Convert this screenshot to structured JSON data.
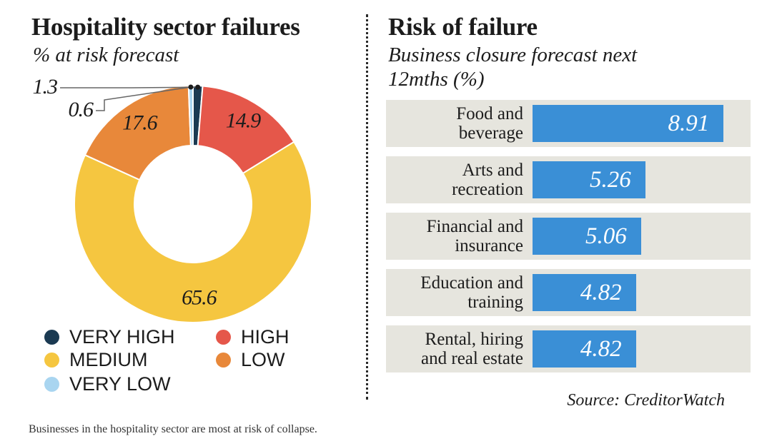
{
  "caption": "Businesses in the hospitality sector are most at risk of collapse.",
  "chart_data": [
    {
      "type": "pie",
      "title": "Hospitality sector failures",
      "subtitle": "% at risk forecast",
      "categories": [
        "VERY HIGH",
        "HIGH",
        "MEDIUM",
        "LOW",
        "VERY LOW"
      ],
      "values": [
        1.3,
        14.9,
        65.6,
        17.6,
        0.6
      ],
      "value_labels": [
        "1.3",
        "14.9",
        "65.6",
        "17.6",
        "0.6"
      ],
      "colors": [
        "#1b3a52",
        "#e5574a",
        "#f5c640",
        "#e8883a",
        "#a9d5f0"
      ],
      "legend": [
        {
          "label": "VERY HIGH",
          "color": "#1b3a52"
        },
        {
          "label": "HIGH",
          "color": "#e5574a"
        },
        {
          "label": "MEDIUM",
          "color": "#f5c640"
        },
        {
          "label": "LOW",
          "color": "#e8883a"
        },
        {
          "label": "VERY LOW",
          "color": "#a9d5f0"
        }
      ],
      "legend_position": "bottom"
    },
    {
      "type": "bar",
      "orientation": "horizontal",
      "title": "Risk of failure",
      "subtitle": "Business closure forecast next 12mths (%)",
      "categories": [
        "Food and beverage",
        "Arts and recreation",
        "Financial and insurance",
        "Education and training",
        "Rental, hiring and real estate"
      ],
      "category_lines": [
        [
          "Food and",
          "beverage"
        ],
        [
          "Arts and",
          "recreation"
        ],
        [
          "Financial and",
          "insurance"
        ],
        [
          "Education and",
          "training"
        ],
        [
          "Rental, hiring",
          "and real estate"
        ]
      ],
      "values": [
        8.91,
        5.26,
        5.06,
        4.82,
        4.82
      ],
      "value_labels": [
        "8.91",
        "5.26",
        "5.06",
        "4.82",
        "4.82"
      ],
      "xlim": [
        0,
        9.5
      ],
      "bar_color": "#3a8fd6",
      "source": "Source: CreditorWatch"
    }
  ]
}
